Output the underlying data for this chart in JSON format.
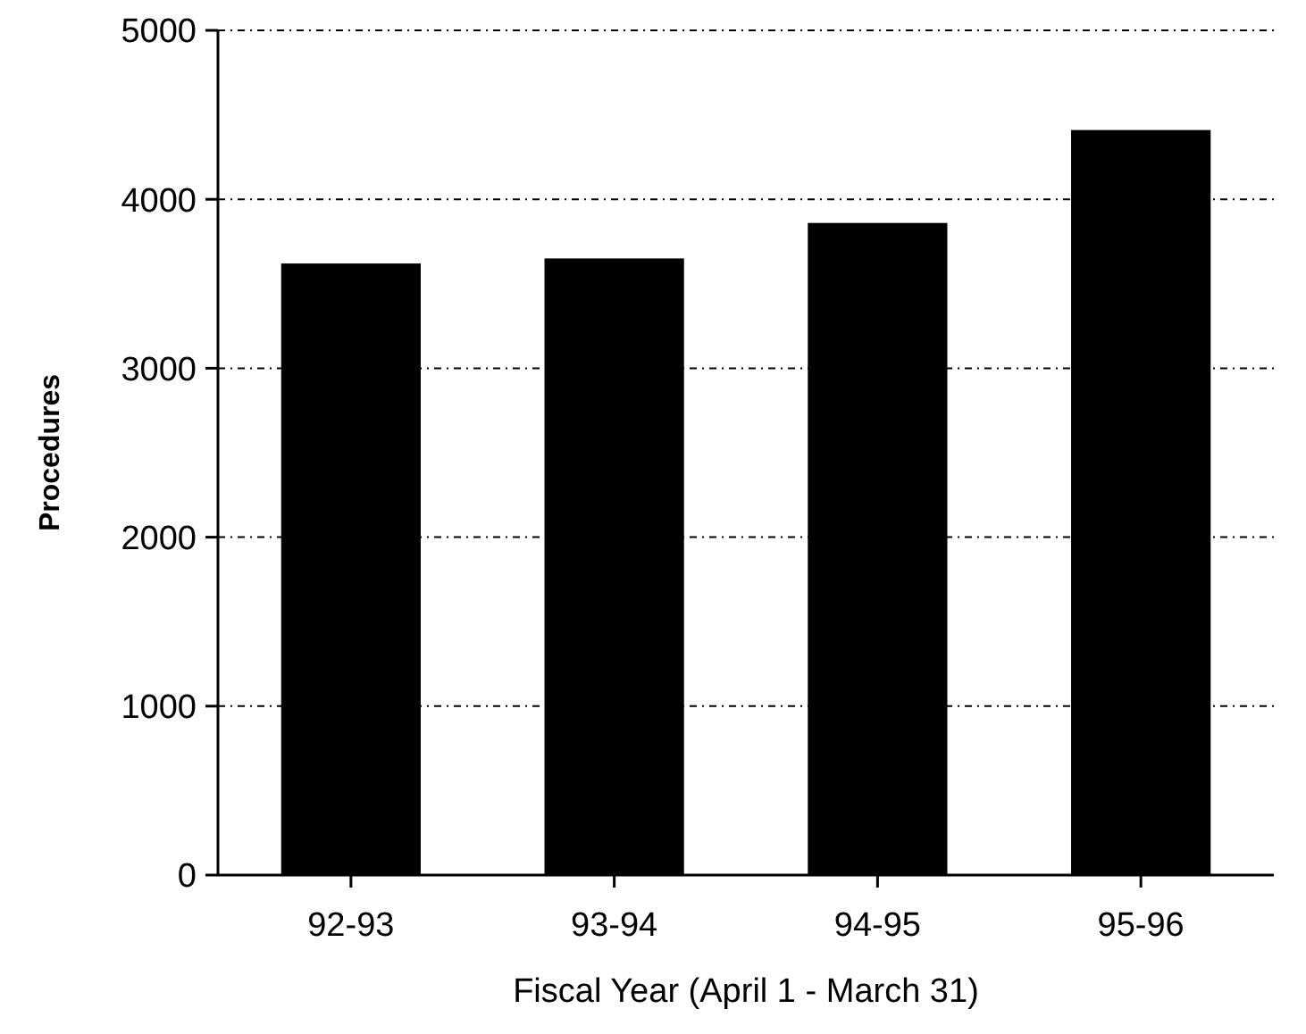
{
  "chart_data": {
    "type": "bar",
    "xlabel": "Fiscal Year (April 1 - March 31)",
    "ylabel": "Procedures",
    "categories": [
      "92-93",
      "93-94",
      "94-95",
      "95-96"
    ],
    "values": [
      3620,
      3650,
      3860,
      4410
    ],
    "color": "#000000",
    "ylim": [
      0,
      5000
    ],
    "yticks": [
      0,
      1000,
      2000,
      3000,
      4000,
      5000
    ],
    "grid": "y"
  }
}
